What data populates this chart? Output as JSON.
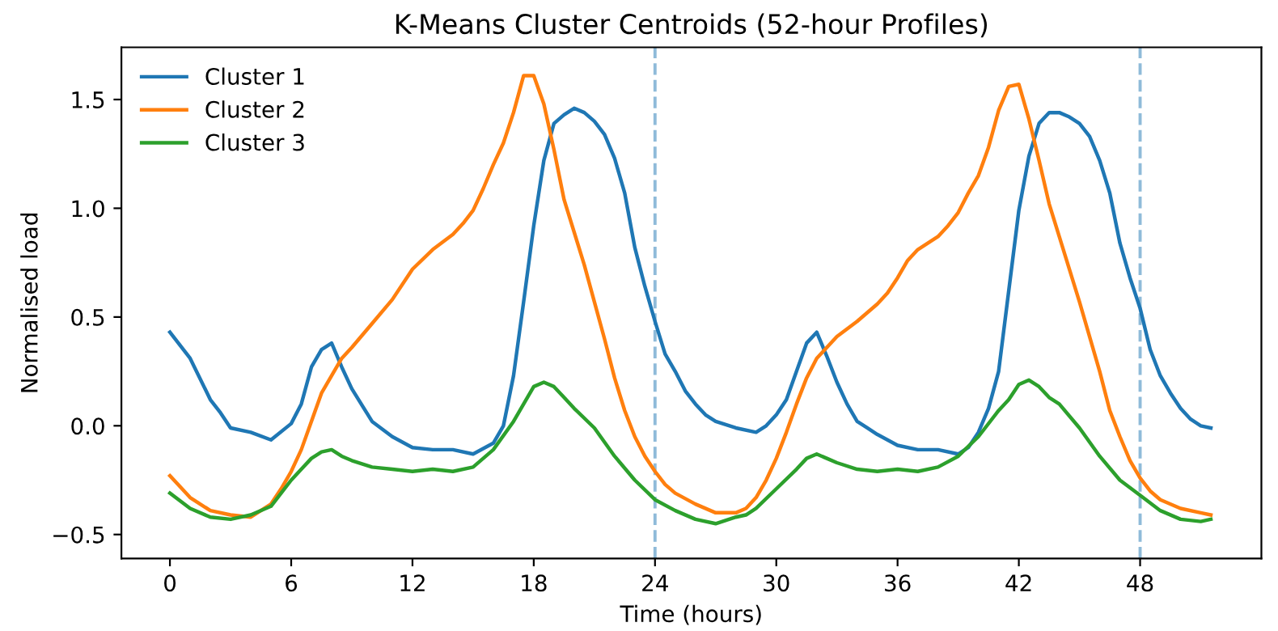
{
  "chart_data": {
    "type": "line",
    "title": "K-Means Cluster Centroids (52-hour Profiles)",
    "xlabel": "Time (hours)",
    "ylabel": "Normalised load",
    "xlim": [
      -2.4,
      54
    ],
    "ylim": [
      -0.61,
      1.74
    ],
    "xticks": [
      0,
      6,
      12,
      18,
      24,
      30,
      36,
      42,
      48
    ],
    "yticks": [
      {
        "value": -0.5,
        "label": "−0.5"
      },
      {
        "value": 0,
        "label": "0.0"
      },
      {
        "value": 0.5,
        "label": "0.5"
      },
      {
        "value": 1,
        "label": "1.0"
      },
      {
        "value": 1.5,
        "label": "1.5"
      }
    ],
    "grid": false,
    "legend": "top left",
    "line_style": "solid",
    "marker": "none",
    "ref_lines": [
      {
        "axis": "x",
        "value": 24,
        "color": "#8fbbd9",
        "line_style": "dashed"
      },
      {
        "axis": "x",
        "value": 48,
        "color": "#8fbbd9",
        "line_style": "dashed"
      }
    ],
    "series": [
      {
        "name": "Cluster 1",
        "color": "#1f77b4",
        "x": [
          0,
          1,
          2,
          2.5,
          3,
          4,
          5,
          6,
          6.5,
          7,
          7.5,
          8,
          8.5,
          9,
          10,
          11,
          12,
          13,
          14,
          15,
          16,
          16.5,
          17,
          17.5,
          18,
          18.5,
          19,
          19.5,
          20,
          20.5,
          21,
          21.5,
          22,
          22.5,
          23,
          23.5,
          24,
          24.5,
          25,
          25.5,
          26,
          26.5,
          27,
          28,
          29,
          29.5,
          30,
          30.5,
          31,
          31.5,
          32,
          32.5,
          33,
          33.5,
          34,
          34.5,
          35,
          36,
          37,
          38,
          39,
          39.5,
          40,
          40.5,
          41,
          41.5,
          42,
          42.5,
          43,
          43.5,
          44,
          44.5,
          45,
          45.5,
          46,
          46.5,
          47,
          47.5,
          48,
          48.5,
          49,
          49.5,
          50,
          50.5,
          51,
          51.5
        ],
        "values": [
          0.43,
          0.31,
          0.12,
          0.06,
          -0.01,
          -0.03,
          -0.065,
          0.01,
          0.1,
          0.27,
          0.35,
          0.38,
          0.27,
          0.17,
          0.02,
          -0.05,
          -0.1,
          -0.11,
          -0.11,
          -0.13,
          -0.08,
          0,
          0.23,
          0.57,
          0.92,
          1.22,
          1.39,
          1.43,
          1.46,
          1.44,
          1.4,
          1.34,
          1.23,
          1.07,
          0.82,
          0.64,
          0.48,
          0.33,
          0.25,
          0.16,
          0.1,
          0.05,
          0.02,
          -0.01,
          -0.03,
          0,
          0.05,
          0.12,
          0.25,
          0.38,
          0.43,
          0.32,
          0.2,
          0.1,
          0.02,
          -0.01,
          -0.04,
          -0.09,
          -0.11,
          -0.11,
          -0.13,
          -0.1,
          -0.03,
          0.08,
          0.25,
          0.62,
          0.99,
          1.24,
          1.39,
          1.44,
          1.44,
          1.42,
          1.39,
          1.33,
          1.22,
          1.07,
          0.84,
          0.68,
          0.54,
          0.35,
          0.23,
          0.15,
          0.08,
          0.03,
          0,
          -0.01
        ]
      },
      {
        "name": "Cluster 2",
        "color": "#ff7f0e",
        "x": [
          0,
          0.5,
          1,
          2,
          3,
          4,
          5,
          5.5,
          6,
          6.5,
          7,
          7.5,
          8,
          8.5,
          9,
          10,
          11,
          12,
          13,
          14,
          14.5,
          15,
          15.5,
          16,
          16.5,
          17,
          17.5,
          18,
          18.5,
          19,
          19.5,
          20,
          20.5,
          21,
          21.5,
          22,
          22.5,
          23,
          23.5,
          24,
          24.5,
          25,
          26,
          27,
          28,
          28.5,
          29,
          29.5,
          30,
          30.5,
          31,
          31.5,
          32,
          32.5,
          33,
          34,
          35,
          35.5,
          36,
          36.5,
          37,
          38,
          38.5,
          39,
          39.5,
          40,
          40.5,
          41,
          41.5,
          42,
          42.5,
          43,
          43.5,
          44,
          45,
          46,
          46.5,
          47,
          47.5,
          48,
          48.5,
          49,
          50,
          51,
          51.5
        ],
        "values": [
          -0.23,
          -0.28,
          -0.33,
          -0.39,
          -0.41,
          -0.42,
          -0.36,
          -0.29,
          -0.21,
          -0.11,
          0.02,
          0.15,
          0.23,
          0.31,
          0.36,
          0.47,
          0.58,
          0.72,
          0.81,
          0.88,
          0.93,
          0.99,
          1.09,
          1.2,
          1.3,
          1.44,
          1.61,
          1.61,
          1.48,
          1.27,
          1.04,
          0.89,
          0.74,
          0.57,
          0.4,
          0.22,
          0.07,
          -0.05,
          -0.14,
          -0.21,
          -0.27,
          -0.31,
          -0.36,
          -0.4,
          -0.4,
          -0.38,
          -0.33,
          -0.25,
          -0.15,
          -0.03,
          0.1,
          0.22,
          0.31,
          0.36,
          0.41,
          0.48,
          0.56,
          0.61,
          0.68,
          0.76,
          0.81,
          0.87,
          0.92,
          0.98,
          1.07,
          1.15,
          1.28,
          1.45,
          1.56,
          1.57,
          1.41,
          1.22,
          1.02,
          0.87,
          0.57,
          0.25,
          0.07,
          -0.05,
          -0.16,
          -0.24,
          -0.3,
          -0.34,
          -0.38,
          -0.4,
          -0.41
        ]
      },
      {
        "name": "Cluster 3",
        "color": "#2ca02c",
        "x": [
          0,
          1,
          2,
          3,
          4,
          5,
          5.5,
          6,
          6.5,
          7,
          7.5,
          8,
          8.5,
          9,
          10,
          11,
          12,
          13,
          14,
          15,
          16,
          17,
          17.5,
          18,
          18.5,
          19,
          19.5,
          20,
          21,
          22,
          23,
          24,
          25,
          26,
          27,
          28,
          28.5,
          29,
          30,
          31,
          31.5,
          32,
          32.5,
          33,
          34,
          35,
          36,
          37,
          38,
          39,
          40,
          41,
          41.5,
          42,
          42.5,
          43,
          43.5,
          44,
          45,
          46,
          47,
          48,
          49,
          50,
          51,
          51.5
        ],
        "values": [
          -0.31,
          -0.38,
          -0.42,
          -0.43,
          -0.41,
          -0.37,
          -0.31,
          -0.25,
          -0.2,
          -0.15,
          -0.12,
          -0.11,
          -0.14,
          -0.16,
          -0.19,
          -0.2,
          -0.21,
          -0.2,
          -0.21,
          -0.19,
          -0.11,
          0.02,
          0.1,
          0.18,
          0.2,
          0.18,
          0.13,
          0.08,
          -0.01,
          -0.14,
          -0.25,
          -0.34,
          -0.39,
          -0.43,
          -0.45,
          -0.42,
          -0.41,
          -0.38,
          -0.29,
          -0.2,
          -0.15,
          -0.13,
          -0.15,
          -0.17,
          -0.2,
          -0.21,
          -0.2,
          -0.21,
          -0.19,
          -0.14,
          -0.05,
          0.07,
          0.12,
          0.19,
          0.21,
          0.18,
          0.13,
          0.1,
          -0.01,
          -0.14,
          -0.25,
          -0.32,
          -0.39,
          -0.43,
          -0.44,
          -0.43
        ]
      }
    ]
  }
}
